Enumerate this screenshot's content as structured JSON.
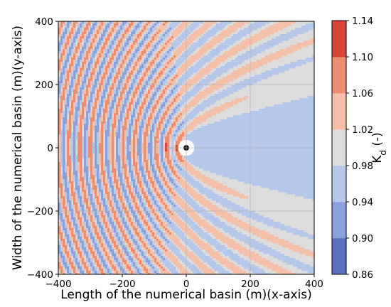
{
  "chart_data": {
    "type": "heatmap",
    "title": "",
    "xlabel": "Length of the numerical basin (m)(x-axis)",
    "ylabel": "Width of the numerical basin (m)(y-axis)",
    "xlim": [
      -400,
      400
    ],
    "ylim": [
      -400,
      400
    ],
    "x_ticks": [
      "−400",
      "−200",
      "0",
      "200",
      "400"
    ],
    "y_ticks": [
      "−400",
      "−200",
      "0",
      "200",
      "400"
    ],
    "grid": true,
    "colorbar": {
      "label": "K_d (-)",
      "label_main": "K",
      "label_sub": "d",
      "label_suffix": " (-)",
      "levels": [
        0.86,
        0.9,
        0.94,
        0.98,
        1.02,
        1.06,
        1.1,
        1.14
      ],
      "level_labels": [
        "0.86",
        "0.90",
        "0.94",
        "0.98",
        "1.02",
        "1.06",
        "1.10",
        "1.14"
      ],
      "colors": [
        "#5a70c1",
        "#8ba0d8",
        "#b6c8ea",
        "#dddddd",
        "#f5c0aa",
        "#ec8d70",
        "#d8453c"
      ]
    },
    "field": {
      "background_value": 0.99,
      "wave_direction": "from negative x toward positive x",
      "structure_center": [
        0,
        0
      ],
      "structure_radius_m": 25,
      "shadow_value": 0.95,
      "reflection_lobe_value": 1.04
    }
  }
}
